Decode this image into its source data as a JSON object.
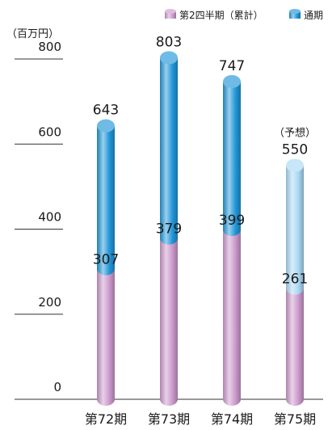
{
  "chart_data": {
    "type": "bar",
    "style": "stacked-cylinder",
    "unit_label": "（百万円）",
    "categories": [
      "第72期",
      "第73期",
      "第74期",
      "第75期"
    ],
    "series": [
      {
        "name": "第2四半期（累計）",
        "values": [
          307,
          379,
          399,
          261
        ],
        "color": "#cc99cc"
      },
      {
        "name": "通期",
        "values": [
          643,
          803,
          747,
          550
        ],
        "color": "#2196d8"
      }
    ],
    "forecast_index": 3,
    "forecast_label": "（予想）",
    "forecast_color": "#a9d8f2",
    "yticks": [
      0,
      200,
      400,
      600,
      800
    ],
    "ylim": [
      0,
      800
    ],
    "grid": false,
    "legend": "top-right"
  }
}
